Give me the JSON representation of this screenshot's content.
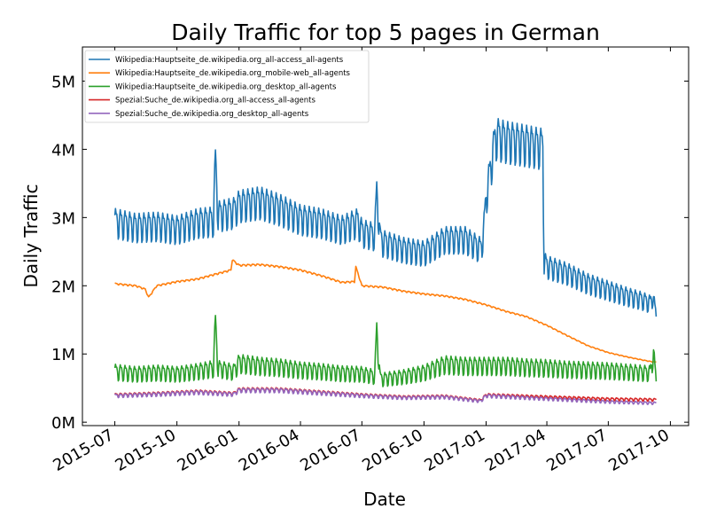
{
  "chart_data": {
    "type": "line",
    "title": "Daily Traffic for top 5 pages in German",
    "xlabel": "Date",
    "ylabel": "Daily Traffic",
    "x_start": "2015-07-01",
    "x_end": "2017-09-10",
    "xlim": [
      "2015-05-14",
      "2017-10-28"
    ],
    "ylim": [
      -50000,
      5500000
    ],
    "x_ticks": [
      {
        "date": "2015-07-01",
        "label": "2015-07"
      },
      {
        "date": "2015-10-01",
        "label": "2015-10"
      },
      {
        "date": "2016-01-01",
        "label": "2016-01"
      },
      {
        "date": "2016-04-01",
        "label": "2016-04"
      },
      {
        "date": "2016-07-01",
        "label": "2016-07"
      },
      {
        "date": "2016-10-01",
        "label": "2016-10"
      },
      {
        "date": "2017-01-01",
        "label": "2017-01"
      },
      {
        "date": "2017-04-01",
        "label": "2017-04"
      },
      {
        "date": "2017-07-01",
        "label": "2017-07"
      },
      {
        "date": "2017-10-01",
        "label": "2017-10"
      }
    ],
    "y_ticks": [
      {
        "value": 0,
        "label": "0M"
      },
      {
        "value": 1000000,
        "label": "1M"
      },
      {
        "value": 2000000,
        "label": "2M"
      },
      {
        "value": 3000000,
        "label": "3M"
      },
      {
        "value": 4000000,
        "label": "4M"
      },
      {
        "value": 5000000,
        "label": "5M"
      }
    ],
    "legend_position": "top-left",
    "series": [
      {
        "name": "Wikipedia:Hauptseite_de.wikipedia.org_all-access_all-agents",
        "color": "#1f77b4",
        "weekly_amplitude": 0.14,
        "x": [
          "2015-07-01",
          "2015-08-01",
          "2015-09-01",
          "2015-10-01",
          "2015-11-01",
          "2015-11-24",
          "2015-11-27",
          "2015-12-01",
          "2015-12-24",
          "2016-01-01",
          "2016-02-01",
          "2016-03-01",
          "2016-04-01",
          "2016-05-01",
          "2016-06-01",
          "2016-06-25",
          "2016-07-01",
          "2016-07-20",
          "2016-07-23",
          "2016-07-28",
          "2016-08-01",
          "2016-09-01",
          "2016-10-01",
          "2016-11-01",
          "2016-12-01",
          "2016-12-24",
          "2016-12-28",
          "2017-01-01",
          "2017-01-15",
          "2017-02-01",
          "2017-03-01",
          "2017-03-26",
          "2017-03-28",
          "2017-04-01",
          "2017-05-01",
          "2017-06-01",
          "2017-07-01",
          "2017-08-01",
          "2017-08-20",
          "2017-09-01",
          "2017-09-05",
          "2017-09-10"
        ],
        "values": [
          2950000,
          2880000,
          2900000,
          2850000,
          2950000,
          2970000,
          3850000,
          3050000,
          3100000,
          3200000,
          3250000,
          3150000,
          3000000,
          2950000,
          2850000,
          2950000,
          2800000,
          2750000,
          3400000,
          2700000,
          2650000,
          2550000,
          2500000,
          2700000,
          2700000,
          2550000,
          2750000,
          3300000,
          4200000,
          4150000,
          4100000,
          4050000,
          2350000,
          2300000,
          2200000,
          2050000,
          1950000,
          1850000,
          1800000,
          1750000,
          1850000,
          1550000
        ]
      },
      {
        "name": "Wikipedia:Hauptseite_de.wikipedia.org_mobile-web_all-agents",
        "color": "#ff7f0e",
        "weekly_amplitude": 0.01,
        "x": [
          "2015-07-01",
          "2015-08-01",
          "2015-08-15",
          "2015-08-20",
          "2015-09-01",
          "2015-10-01",
          "2015-11-01",
          "2015-12-01",
          "2015-12-20",
          "2015-12-22",
          "2016-01-01",
          "2016-02-01",
          "2016-03-01",
          "2016-04-01",
          "2016-05-01",
          "2016-06-01",
          "2016-06-20",
          "2016-06-22",
          "2016-07-01",
          "2016-08-01",
          "2016-09-01",
          "2016-10-01",
          "2016-11-01",
          "2016-12-01",
          "2017-01-01",
          "2017-02-01",
          "2017-03-01",
          "2017-04-01",
          "2017-05-01",
          "2017-06-01",
          "2017-07-01",
          "2017-08-01",
          "2017-09-01",
          "2017-09-10"
        ],
        "values": [
          2030000,
          2000000,
          1950000,
          1830000,
          2000000,
          2060000,
          2100000,
          2180000,
          2230000,
          2380000,
          2300000,
          2310000,
          2280000,
          2230000,
          2150000,
          2050000,
          2060000,
          2280000,
          2000000,
          1980000,
          1920000,
          1880000,
          1850000,
          1800000,
          1720000,
          1620000,
          1550000,
          1420000,
          1270000,
          1120000,
          1020000,
          950000,
          890000,
          880000
        ]
      },
      {
        "name": "Wikipedia:Hauptseite_de.wikipedia.org_desktop_all-agents",
        "color": "#2ca02c",
        "weekly_amplitude": 0.3,
        "x": [
          "2015-07-01",
          "2015-08-01",
          "2015-09-01",
          "2015-10-01",
          "2015-11-01",
          "2015-11-24",
          "2015-11-27",
          "2015-12-01",
          "2015-12-24",
          "2016-01-01",
          "2016-02-01",
          "2016-03-01",
          "2016-04-01",
          "2016-05-01",
          "2016-06-01",
          "2016-07-01",
          "2016-07-20",
          "2016-07-23",
          "2016-07-28",
          "2016-08-01",
          "2016-09-01",
          "2016-10-01",
          "2016-11-01",
          "2016-12-01",
          "2017-01-01",
          "2017-02-01",
          "2017-03-01",
          "2017-04-01",
          "2017-05-01",
          "2017-06-01",
          "2017-07-01",
          "2017-08-01",
          "2017-09-01",
          "2017-09-06",
          "2017-09-10"
        ],
        "values": [
          750000,
          720000,
          740000,
          720000,
          760000,
          800000,
          1450000,
          800000,
          750000,
          880000,
          840000,
          820000,
          780000,
          760000,
          730000,
          720000,
          680000,
          1350000,
          650000,
          640000,
          680000,
          740000,
          860000,
          840000,
          840000,
          840000,
          820000,
          810000,
          790000,
          780000,
          770000,
          750000,
          730000,
          1000000,
          600000
        ]
      },
      {
        "name": "Spezial:Suche_de.wikipedia.org_all-access_all-agents",
        "color": "#d62728",
        "weekly_amplitude": 0.12,
        "x": [
          "2015-07-01",
          "2015-09-01",
          "2015-11-01",
          "2015-12-24",
          "2016-01-01",
          "2016-03-01",
          "2016-05-01",
          "2016-07-01",
          "2016-09-01",
          "2016-11-01",
          "2016-12-24",
          "2017-01-01",
          "2017-03-01",
          "2017-05-01",
          "2017-07-01",
          "2017-09-10"
        ],
        "values": [
          400000,
          420000,
          450000,
          420000,
          480000,
          480000,
          440000,
          400000,
          370000,
          380000,
          320000,
          400000,
          380000,
          360000,
          340000,
          330000
        ]
      },
      {
        "name": "Spezial:Suche_de.wikipedia.org_desktop_all-agents",
        "color": "#9467bd",
        "weekly_amplitude": 0.13,
        "x": [
          "2015-07-01",
          "2015-09-01",
          "2015-11-01",
          "2015-12-24",
          "2016-01-01",
          "2016-03-01",
          "2016-05-01",
          "2016-07-01",
          "2016-09-01",
          "2016-11-01",
          "2016-12-24",
          "2017-01-01",
          "2017-03-01",
          "2017-05-01",
          "2017-07-01",
          "2017-09-10"
        ],
        "values": [
          390000,
          410000,
          440000,
          410000,
          470000,
          470000,
          430000,
          390000,
          360000,
          370000,
          310000,
          390000,
          360000,
          330000,
          300000,
          280000
        ]
      }
    ]
  }
}
